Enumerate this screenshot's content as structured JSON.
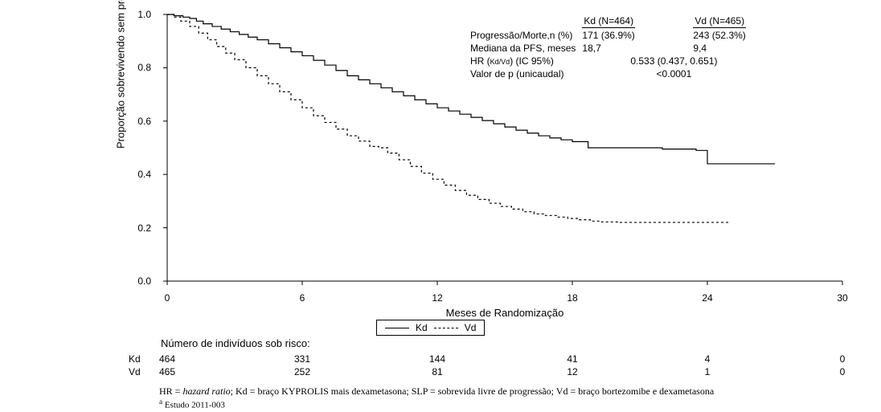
{
  "chart": {
    "type": "kaplan_meier",
    "background_color": "#ffffff",
    "line_color": "#000000",
    "text_color": "#000000",
    "y_axis": {
      "title": "Proporção sobrevivendo sem progressão",
      "min": 0.0,
      "max": 1.0,
      "ticks": [
        0.0,
        0.2,
        0.4,
        0.6,
        0.8,
        1.0
      ],
      "tick_labels": [
        "0.0",
        "0.2",
        "0.4",
        "0.6",
        "0.8",
        "1.0"
      ]
    },
    "x_axis": {
      "title": "Meses de Randomização",
      "min": 0,
      "max": 30,
      "ticks": [
        0,
        6,
        12,
        18,
        24,
        30
      ],
      "tick_labels": [
        "0",
        "6",
        "12",
        "18",
        "24",
        "30"
      ]
    },
    "series": [
      {
        "name": "Kd",
        "dash": "solid",
        "points": [
          [
            0,
            1.0
          ],
          [
            0.3,
            0.995
          ],
          [
            0.7,
            0.99
          ],
          [
            1.0,
            0.985
          ],
          [
            1.3,
            0.975
          ],
          [
            1.6,
            0.965
          ],
          [
            2.0,
            0.955
          ],
          [
            2.4,
            0.945
          ],
          [
            2.8,
            0.935
          ],
          [
            3.2,
            0.925
          ],
          [
            3.6,
            0.915
          ],
          [
            4.0,
            0.905
          ],
          [
            4.5,
            0.89
          ],
          [
            5.0,
            0.875
          ],
          [
            5.5,
            0.86
          ],
          [
            6.0,
            0.845
          ],
          [
            6.5,
            0.828
          ],
          [
            7.0,
            0.81
          ],
          [
            7.5,
            0.79
          ],
          [
            8.0,
            0.77
          ],
          [
            8.5,
            0.755
          ],
          [
            9.0,
            0.74
          ],
          [
            9.5,
            0.725
          ],
          [
            10.0,
            0.71
          ],
          [
            10.5,
            0.695
          ],
          [
            11.0,
            0.68
          ],
          [
            11.5,
            0.665
          ],
          [
            12.0,
            0.65
          ],
          [
            12.5,
            0.638
          ],
          [
            13.0,
            0.626
          ],
          [
            13.5,
            0.614
          ],
          [
            14.0,
            0.602
          ],
          [
            14.5,
            0.59
          ],
          [
            15.0,
            0.578
          ],
          [
            15.5,
            0.566
          ],
          [
            16.0,
            0.555
          ],
          [
            16.5,
            0.545
          ],
          [
            17.0,
            0.537
          ],
          [
            17.5,
            0.53
          ],
          [
            18.0,
            0.523
          ],
          [
            18.7,
            0.5
          ],
          [
            20.0,
            0.5
          ],
          [
            22.0,
            0.495
          ],
          [
            23.5,
            0.49
          ],
          [
            24.0,
            0.44
          ],
          [
            27.0,
            0.44
          ]
        ]
      },
      {
        "name": "Vd",
        "dash": "dashed",
        "points": [
          [
            0,
            1.0
          ],
          [
            0.3,
            0.99
          ],
          [
            0.6,
            0.975
          ],
          [
            1.0,
            0.955
          ],
          [
            1.4,
            0.93
          ],
          [
            1.8,
            0.905
          ],
          [
            2.2,
            0.88
          ],
          [
            2.6,
            0.855
          ],
          [
            3.0,
            0.83
          ],
          [
            3.5,
            0.8
          ],
          [
            4.0,
            0.77
          ],
          [
            4.5,
            0.74
          ],
          [
            5.0,
            0.71
          ],
          [
            5.5,
            0.68
          ],
          [
            6.0,
            0.65
          ],
          [
            6.5,
            0.62
          ],
          [
            7.0,
            0.595
          ],
          [
            7.5,
            0.57
          ],
          [
            8.0,
            0.545
          ],
          [
            8.5,
            0.525
          ],
          [
            9.0,
            0.505
          ],
          [
            9.4,
            0.5
          ],
          [
            9.8,
            0.48
          ],
          [
            10.3,
            0.455
          ],
          [
            10.8,
            0.43
          ],
          [
            11.3,
            0.405
          ],
          [
            11.8,
            0.382
          ],
          [
            12.3,
            0.36
          ],
          [
            12.8,
            0.34
          ],
          [
            13.3,
            0.322
          ],
          [
            13.8,
            0.306
          ],
          [
            14.3,
            0.292
          ],
          [
            14.8,
            0.28
          ],
          [
            15.3,
            0.27
          ],
          [
            15.8,
            0.26
          ],
          [
            16.3,
            0.252
          ],
          [
            16.8,
            0.246
          ],
          [
            17.3,
            0.24
          ],
          [
            17.8,
            0.235
          ],
          [
            18.3,
            0.23
          ],
          [
            18.8,
            0.225
          ],
          [
            19.3,
            0.222
          ],
          [
            20.0,
            0.22
          ],
          [
            25.0,
            0.22
          ]
        ]
      }
    ],
    "legend": {
      "items": [
        {
          "label": "Kd",
          "dash": "solid"
        },
        {
          "label": "Vd",
          "dash": "dashed"
        }
      ]
    }
  },
  "stats": {
    "col_headers": {
      "kd": "Kd (N=464)",
      "vd": "Vd (N=465)"
    },
    "rows": {
      "events": {
        "label": "Progressão/Morte,n (%)",
        "kd": "171 (36.9%)",
        "vd": "243 (52.3%)"
      },
      "median": {
        "label": "Mediana da PFS, meses",
        "kd": "18,7",
        "vd": "9,4"
      },
      "hr_label_prefix": "HR (",
      "hr_label_sub": "Kd/Vd",
      "hr_label_suffix": ") (IC 95%)",
      "hr_value": "0.533 (0.437, 0.651)",
      "pval": {
        "label": "Valor de p (unicaudal)",
        "value": "<0.0001"
      }
    }
  },
  "risk": {
    "header": "Número de indivíduos sob risco:",
    "arms": [
      {
        "name": "Kd",
        "counts": [
          "464",
          "331",
          "144",
          "41",
          "4",
          "0"
        ]
      },
      {
        "name": "Vd",
        "counts": [
          "465",
          "252",
          "81",
          "12",
          "1",
          "0"
        ]
      }
    ]
  },
  "abbrev": {
    "line1": "HR = hazard ratio;  Kd = braço KYPROLIS mais dexametasona;  SLP = sobrevida livre de progressão;  Vd = braço bortezomibe e dexametasona",
    "note_sup": "a",
    "note_text": " Estudo 2011-003"
  }
}
